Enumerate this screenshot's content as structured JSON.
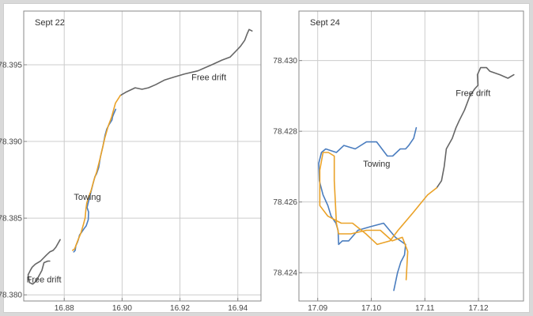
{
  "colors": {
    "blue": "#4a7dbf",
    "orange": "#eaa228",
    "gray": "#666666",
    "grid": "#cccccc",
    "frame": "#888888"
  },
  "chart_data": [
    {
      "type": "line",
      "title": "Sept 22",
      "xlabel": "",
      "ylabel": "",
      "xlim": [
        16.866,
        16.948
      ],
      "ylim": [
        78.3796,
        78.3985
      ],
      "x_ticks": [
        16.88,
        16.9,
        16.92,
        16.94
      ],
      "x_tick_labels": [
        "16.88",
        "16.90",
        "16.92",
        "16.94"
      ],
      "y_ticks": [
        78.38,
        78.385,
        78.39,
        78.395
      ],
      "y_tick_labels": [
        "78.380",
        "78.385",
        "78.390",
        "78.395"
      ],
      "grid": true,
      "annotations": [
        {
          "text": "Free drift",
          "x": 16.93,
          "y": 78.394
        },
        {
          "text": "Towing",
          "x": 16.888,
          "y": 78.3862
        },
        {
          "text": "Free drift",
          "x": 16.873,
          "y": 78.3808
        }
      ],
      "series": [
        {
          "color": "gray",
          "points": [
            [
              16.9449,
              78.3972
            ],
            [
              16.9439,
              78.3973
            ],
            [
              16.9432,
              78.397
            ],
            [
              16.9424,
              78.3966
            ],
            [
              16.9409,
              78.3962
            ],
            [
              16.9394,
              78.3959
            ],
            [
              16.9373,
              78.3955
            ],
            [
              16.9345,
              78.3953
            ],
            [
              16.931,
              78.395
            ],
            [
              16.9262,
              78.3946
            ],
            [
              16.9216,
              78.3944
            ],
            [
              16.918,
              78.3942
            ],
            [
              16.9146,
              78.394
            ],
            [
              16.9116,
              78.3937
            ],
            [
              16.9091,
              78.3935
            ],
            [
              16.9069,
              78.3934
            ],
            [
              16.9045,
              78.3935
            ],
            [
              16.9012,
              78.3932
            ],
            [
              16.8994,
              78.393
            ]
          ]
        },
        {
          "color": "gray",
          "points": [
            [
              16.8786,
              78.3836
            ],
            [
              16.8771,
              78.3831
            ],
            [
              16.8762,
              78.3829
            ],
            [
              16.875,
              78.3828
            ],
            [
              16.8739,
              78.3826
            ],
            [
              16.8718,
              78.3822
            ],
            [
              16.87,
              78.382
            ],
            [
              16.8689,
              78.3818
            ],
            [
              16.8683,
              78.3816
            ],
            [
              16.8675,
              78.3813
            ],
            [
              16.868,
              78.3808
            ],
            [
              16.8691,
              78.3807
            ],
            [
              16.8703,
              78.3809
            ],
            [
              16.8723,
              78.3816
            ],
            [
              16.873,
              78.3821
            ],
            [
              16.8743,
              78.3822
            ],
            [
              16.875,
              78.3822
            ]
          ]
        },
        {
          "color": "blue",
          "points": [
            [
              16.8978,
              78.3921
            ],
            [
              16.8971,
              78.3918
            ],
            [
              16.8967,
              78.3916
            ],
            [
              16.8965,
              78.3914
            ],
            [
              16.8955,
              78.3911
            ],
            [
              16.8947,
              78.3908
            ],
            [
              16.8941,
              78.3904
            ],
            [
              16.8938,
              78.3901
            ],
            [
              16.8934,
              78.3897
            ],
            [
              16.8929,
              78.3893
            ],
            [
              16.8925,
              78.389
            ],
            [
              16.8919,
              78.3883
            ],
            [
              16.8912,
              78.3879
            ],
            [
              16.8906,
              78.3877
            ],
            [
              16.8899,
              78.3872
            ],
            [
              16.8891,
              78.3866
            ],
            [
              16.8884,
              78.3861
            ],
            [
              16.8879,
              78.3857
            ],
            [
              16.8884,
              78.3854
            ],
            [
              16.8883,
              78.3849
            ],
            [
              16.8876,
              78.3845
            ],
            [
              16.8868,
              78.3843
            ],
            [
              16.8861,
              78.3841
            ],
            [
              16.8853,
              78.3839
            ],
            [
              16.8849,
              78.3836
            ],
            [
              16.8845,
              78.3834
            ],
            [
              16.884,
              78.3832
            ],
            [
              16.8838,
              78.3829
            ],
            [
              16.8833,
              78.3828
            ]
          ]
        },
        {
          "color": "orange",
          "points": [
            [
              16.8994,
              78.393
            ],
            [
              16.8977,
              78.3925
            ],
            [
              16.8964,
              78.3916
            ],
            [
              16.8952,
              78.391
            ],
            [
              16.894,
              78.3902
            ],
            [
              16.8934,
              78.3897
            ],
            [
              16.8924,
              78.3889
            ],
            [
              16.8912,
              78.388
            ],
            [
              16.8903,
              78.3875
            ],
            [
              16.8893,
              78.3868
            ],
            [
              16.8883,
              78.3863
            ],
            [
              16.8878,
              78.386
            ],
            [
              16.8875,
              78.3856
            ],
            [
              16.8872,
              78.385
            ],
            [
              16.8865,
              78.3845
            ],
            [
              16.8857,
              78.384
            ],
            [
              16.8848,
              78.3836
            ],
            [
              16.8842,
              78.3833
            ],
            [
              16.8836,
              78.383
            ],
            [
              16.8829,
              78.3829
            ]
          ]
        }
      ]
    },
    {
      "type": "line",
      "title": "Sept 24",
      "xlabel": "",
      "ylabel": "",
      "xlim": [
        17.0865,
        17.1284
      ],
      "ylim": [
        78.4232,
        78.4314
      ],
      "x_ticks": [
        17.09,
        17.1,
        17.11,
        17.12
      ],
      "x_tick_labels": [
        "17.09",
        "17.10",
        "17.11",
        "17.12"
      ],
      "y_ticks": [
        78.424,
        78.426,
        78.428,
        78.43
      ],
      "y_tick_labels": [
        "78.424",
        "78.426",
        "78.428",
        "78.430"
      ],
      "grid": true,
      "annotations": [
        {
          "text": "Free drift",
          "x": 17.119,
          "y": 78.429
        },
        {
          "text": "Towing",
          "x": 17.101,
          "y": 78.427
        }
      ],
      "series": [
        {
          "color": "gray",
          "points": [
            [
              17.1266,
              78.4296
            ],
            [
              17.1255,
              78.4295
            ],
            [
              17.124,
              78.4296
            ],
            [
              17.1221,
              78.4297
            ],
            [
              17.1215,
              78.4298
            ],
            [
              17.1204,
              78.4298
            ],
            [
              17.1198,
              78.4296
            ],
            [
              17.1199,
              78.4293
            ],
            [
              17.1193,
              78.4292
            ],
            [
              17.1184,
              78.429
            ],
            [
              17.1174,
              78.4286
            ],
            [
              17.1164,
              78.4283
            ],
            [
              17.1158,
              78.4281
            ],
            [
              17.1151,
              78.4278
            ],
            [
              17.114,
              78.4275
            ],
            [
              17.1136,
              78.427
            ],
            [
              17.1131,
              78.4266
            ],
            [
              17.1122,
              78.4264
            ]
          ]
        },
        {
          "color": "blue",
          "points": [
            [
              17.1084,
              78.4281
            ],
            [
              17.1079,
              78.4278
            ],
            [
              17.107,
              78.4276
            ],
            [
              17.1064,
              78.4275
            ],
            [
              17.1054,
              78.4275
            ],
            [
              17.104,
              78.4273
            ],
            [
              17.103,
              78.4273
            ],
            [
              17.101,
              78.4277
            ],
            [
              17.0991,
              78.4277
            ],
            [
              17.097,
              78.4275
            ],
            [
              17.0949,
              78.4276
            ],
            [
              17.0935,
              78.4274
            ],
            [
              17.0915,
              78.4275
            ],
            [
              17.0907,
              78.4274
            ],
            [
              17.0902,
              78.4271
            ],
            [
              17.0903,
              78.4266
            ],
            [
              17.091,
              78.4262
            ],
            [
              17.0919,
              78.4259
            ],
            [
              17.0925,
              78.4256
            ],
            [
              17.0934,
              78.4254
            ],
            [
              17.0938,
              78.4252
            ],
            [
              17.0939,
              78.4248
            ],
            [
              17.0946,
              78.4249
            ],
            [
              17.0958,
              78.4249
            ],
            [
              17.0975,
              78.4252
            ],
            [
              17.0998,
              78.4253
            ],
            [
              17.1023,
              78.4254
            ],
            [
              17.1045,
              78.425
            ],
            [
              17.1064,
              78.4248
            ],
            [
              17.1062,
              78.4245
            ],
            [
              17.1055,
              78.4243
            ],
            [
              17.1049,
              78.424
            ],
            [
              17.1042,
              78.4235
            ]
          ]
        },
        {
          "color": "orange",
          "points": [
            [
              17.1122,
              78.4264
            ],
            [
              17.1105,
              78.4262
            ],
            [
              17.1078,
              78.4257
            ],
            [
              17.105,
              78.4252
            ],
            [
              17.1035,
              78.4249
            ],
            [
              17.1011,
              78.4248
            ],
            [
              17.099,
              78.4251
            ],
            [
              17.0965,
              78.4254
            ],
            [
              17.0944,
              78.4254
            ],
            [
              17.0919,
              78.4256
            ],
            [
              17.0904,
              78.4259
            ],
            [
              17.0904,
              78.4269
            ],
            [
              17.091,
              78.4274
            ],
            [
              17.092,
              78.4274
            ],
            [
              17.0931,
              78.4273
            ],
            [
              17.0931,
              78.4266
            ],
            [
              17.0935,
              78.4254
            ],
            [
              17.0939,
              78.4251
            ],
            [
              17.0962,
              78.4251
            ],
            [
              17.0991,
              78.4252
            ],
            [
              17.1017,
              78.4252
            ],
            [
              17.1039,
              78.4249
            ],
            [
              17.1058,
              78.425
            ],
            [
              17.1068,
              78.4246
            ],
            [
              17.1065,
              78.4238
            ]
          ]
        }
      ]
    }
  ]
}
